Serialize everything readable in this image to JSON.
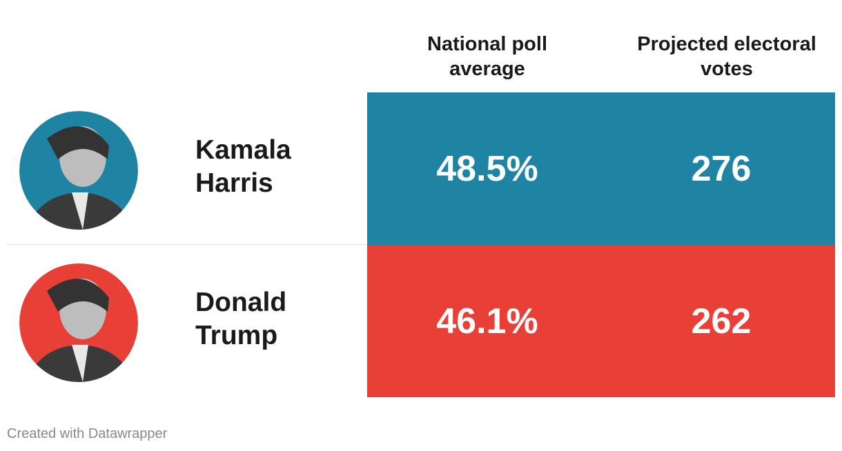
{
  "header": {
    "columns": [
      "National poll average",
      "Projected electoral votes"
    ]
  },
  "table": {
    "rows": [
      {
        "name": "Kamala Harris",
        "poll": "48.5%",
        "votes": 276,
        "color": "#1f84a3"
      },
      {
        "name": "Donald Trump",
        "poll": "46.1%",
        "votes": 262,
        "color": "#e83f36"
      }
    ]
  },
  "footer": "Created with Datawrapper"
}
